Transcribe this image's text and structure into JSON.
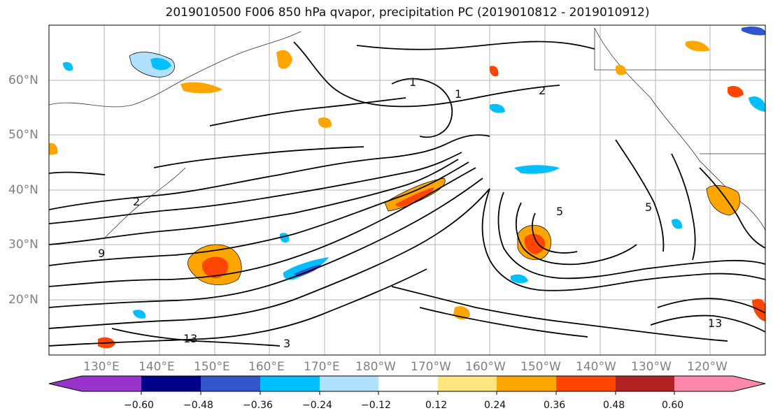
{
  "title": "2019010500 F006 850 hPa qvapor, precipitation PC (2019010812 - 2019010912)",
  "map": {
    "lat_labels": [
      "60°N",
      "50°N",
      "40°N",
      "30°N",
      "20°N"
    ],
    "lon_labels": [
      "130°E",
      "140°E",
      "150°E",
      "160°E",
      "170°E",
      "180°W",
      "170°W",
      "160°W",
      "150°W",
      "140°W",
      "130°W",
      "120°W"
    ],
    "lat_range": [
      10,
      70
    ],
    "lon_range": [
      120,
      250
    ],
    "grid": true,
    "contour_labels": [
      "2",
      "5",
      "5",
      "9",
      "13",
      "13",
      "3",
      "1",
      "2",
      "1"
    ]
  },
  "colorbar": {
    "ticks": [
      "−0.60",
      "−0.48",
      "−0.36",
      "−0.24",
      "−0.12",
      "0.12",
      "0.24",
      "0.36",
      "0.48",
      "0.60"
    ],
    "colors": [
      "#9933cc",
      "#00008b",
      "#3355cc",
      "#00bfff",
      "#b0e2ff",
      "#ffffff",
      "#ffe680",
      "#ffa500",
      "#ff4500",
      "#b22222",
      "#ff88aa"
    ]
  }
}
